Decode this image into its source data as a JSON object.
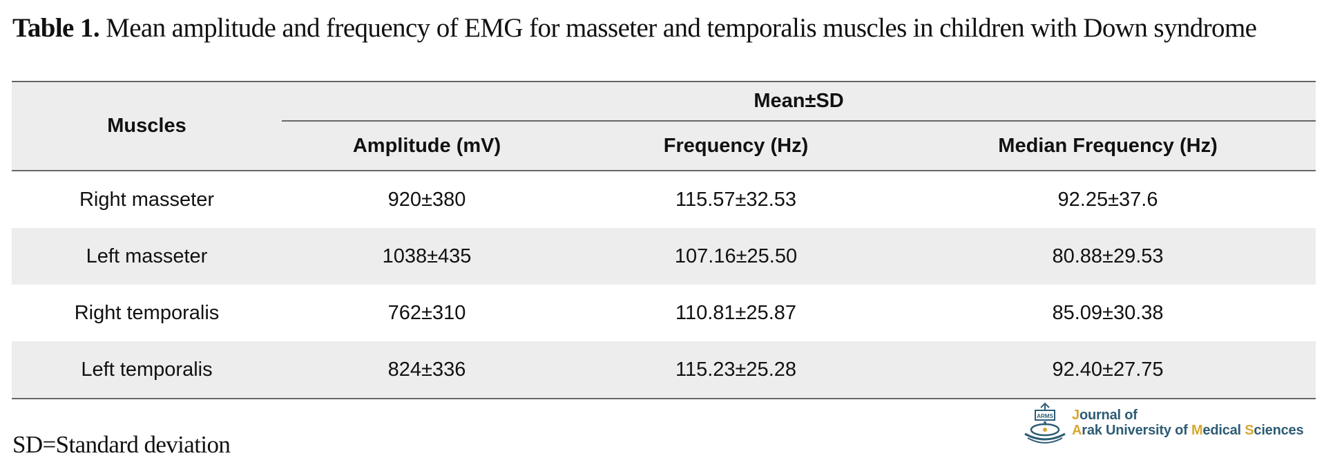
{
  "caption": {
    "label": "Table 1.",
    "text": "Mean amplitude and frequency of EMG for masseter and temporalis muscles in children with Down syndrome"
  },
  "table": {
    "header": {
      "muscles": "Muscles",
      "group": "Mean±SD",
      "columns": [
        "Amplitude (mV)",
        "Frequency (Hz)",
        "Median Frequency (Hz)"
      ]
    },
    "rows": [
      {
        "muscle": "Right masseter",
        "amplitude": "920±380",
        "frequency": "115.57±32.53",
        "median_frequency": "92.25±37.6"
      },
      {
        "muscle": "Left masseter",
        "amplitude": "1038±435",
        "frequency": "107.16±25.50",
        "median_frequency": "80.88±29.53"
      },
      {
        "muscle": "Right temporalis",
        "amplitude": "762±310",
        "frequency": "110.81±25.87",
        "median_frequency": "85.09±30.38"
      },
      {
        "muscle": "Left temporalis",
        "amplitude": "824±336",
        "frequency": "115.23±25.28",
        "median_frequency": "92.40±27.75"
      }
    ]
  },
  "footnote": "SD=Standard deviation",
  "logo": {
    "emblem_text": "ARMS",
    "line1_part1": "J",
    "line1_part2": "ournal of",
    "line2": [
      {
        "text": "A",
        "hl": true
      },
      {
        "text": "rak University of ",
        "hl": false
      },
      {
        "text": "M",
        "hl": true
      },
      {
        "text": "edical ",
        "hl": false
      },
      {
        "text": "S",
        "hl": true
      },
      {
        "text": "ciences",
        "hl": false
      }
    ],
    "colors": {
      "primary": "#2d5c74",
      "accent": "#d8a82f"
    }
  }
}
